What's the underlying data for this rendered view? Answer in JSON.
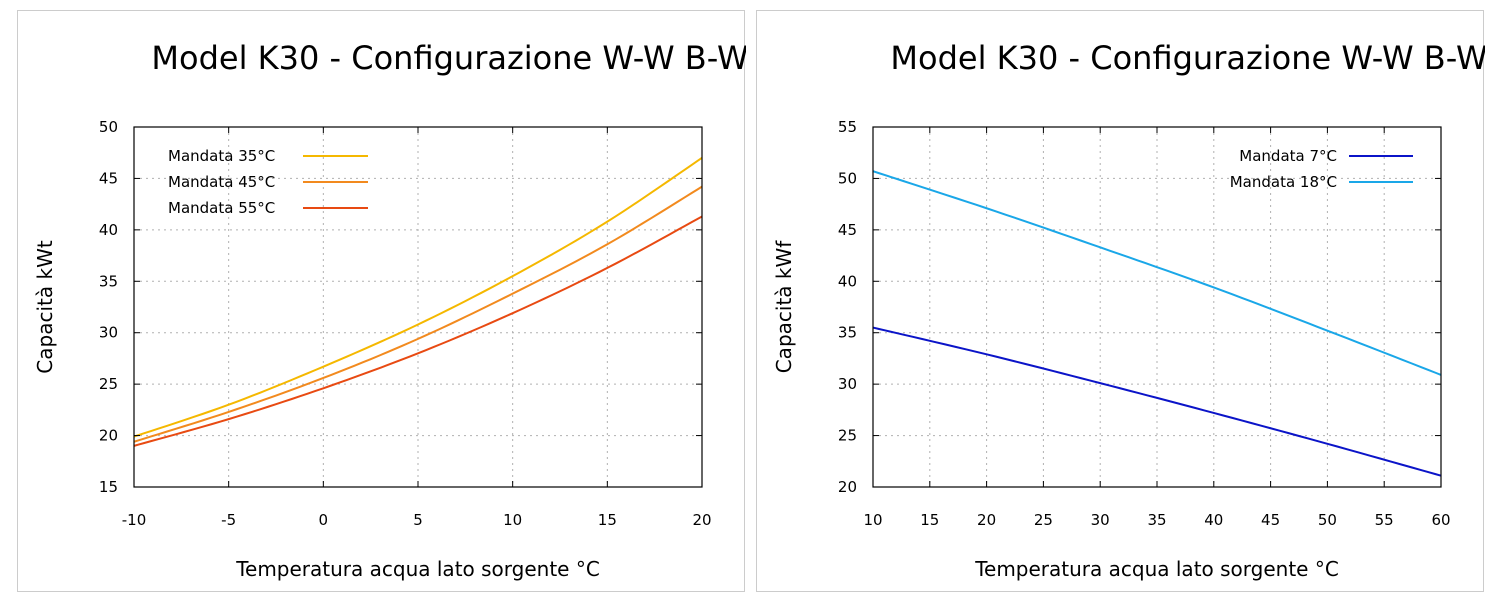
{
  "chart_data": [
    {
      "type": "line",
      "title": "Model K30 - Configurazione W-W B-W",
      "xlabel": "Temperatura acqua lato sorgente °C",
      "ylabel": "Capacità kWt",
      "xlim": [
        -10,
        20
      ],
      "ylim": [
        15,
        50
      ],
      "xticks": [
        -10,
        -5,
        0,
        5,
        10,
        15,
        20
      ],
      "yticks": [
        15,
        20,
        25,
        30,
        35,
        40,
        45,
        50
      ],
      "grid": true,
      "legend_position": "top-left",
      "series": [
        {
          "name": "Mandata 35°C",
          "color": "#f5b800",
          "x": [
            -10,
            -5,
            0,
            5,
            10,
            15,
            20
          ],
          "y": [
            19.9,
            23.0,
            26.7,
            30.8,
            35.5,
            40.8,
            47.0
          ]
        },
        {
          "name": "Mandata 45°C",
          "color": "#f28a1e",
          "x": [
            -10,
            -5,
            0,
            5,
            10,
            15,
            20
          ],
          "y": [
            19.4,
            22.3,
            25.6,
            29.4,
            33.8,
            38.6,
            44.2
          ]
        },
        {
          "name": "Mandata 55°C",
          "color": "#e84a12",
          "x": [
            -10,
            -5,
            0,
            5,
            10,
            15,
            20
          ],
          "y": [
            19.0,
            21.6,
            24.6,
            28.0,
            31.9,
            36.3,
            41.3
          ]
        }
      ]
    },
    {
      "type": "line",
      "title": "Model K30 - Configurazione W-W B-W",
      "xlabel": "Temperatura acqua lato sorgente °C",
      "ylabel": "Capacità kWf",
      "xlim": [
        10,
        60
      ],
      "ylim": [
        20,
        55
      ],
      "xticks": [
        10,
        15,
        20,
        25,
        30,
        35,
        40,
        45,
        50,
        55,
        60
      ],
      "yticks": [
        20,
        25,
        30,
        35,
        40,
        45,
        50,
        55
      ],
      "grid": true,
      "legend_position": "top-right",
      "series": [
        {
          "name": "Mandata 7°C",
          "color": "#0b14c8",
          "x": [
            10,
            20,
            30,
            40,
            50,
            60
          ],
          "y": [
            35.5,
            32.9,
            30.1,
            27.2,
            24.2,
            21.1
          ]
        },
        {
          "name": "Mandata 18°C",
          "color": "#1aa7e8",
          "x": [
            10,
            20,
            30,
            40,
            50,
            60
          ],
          "y": [
            50.7,
            47.1,
            43.3,
            39.4,
            35.2,
            30.9
          ]
        }
      ]
    }
  ]
}
